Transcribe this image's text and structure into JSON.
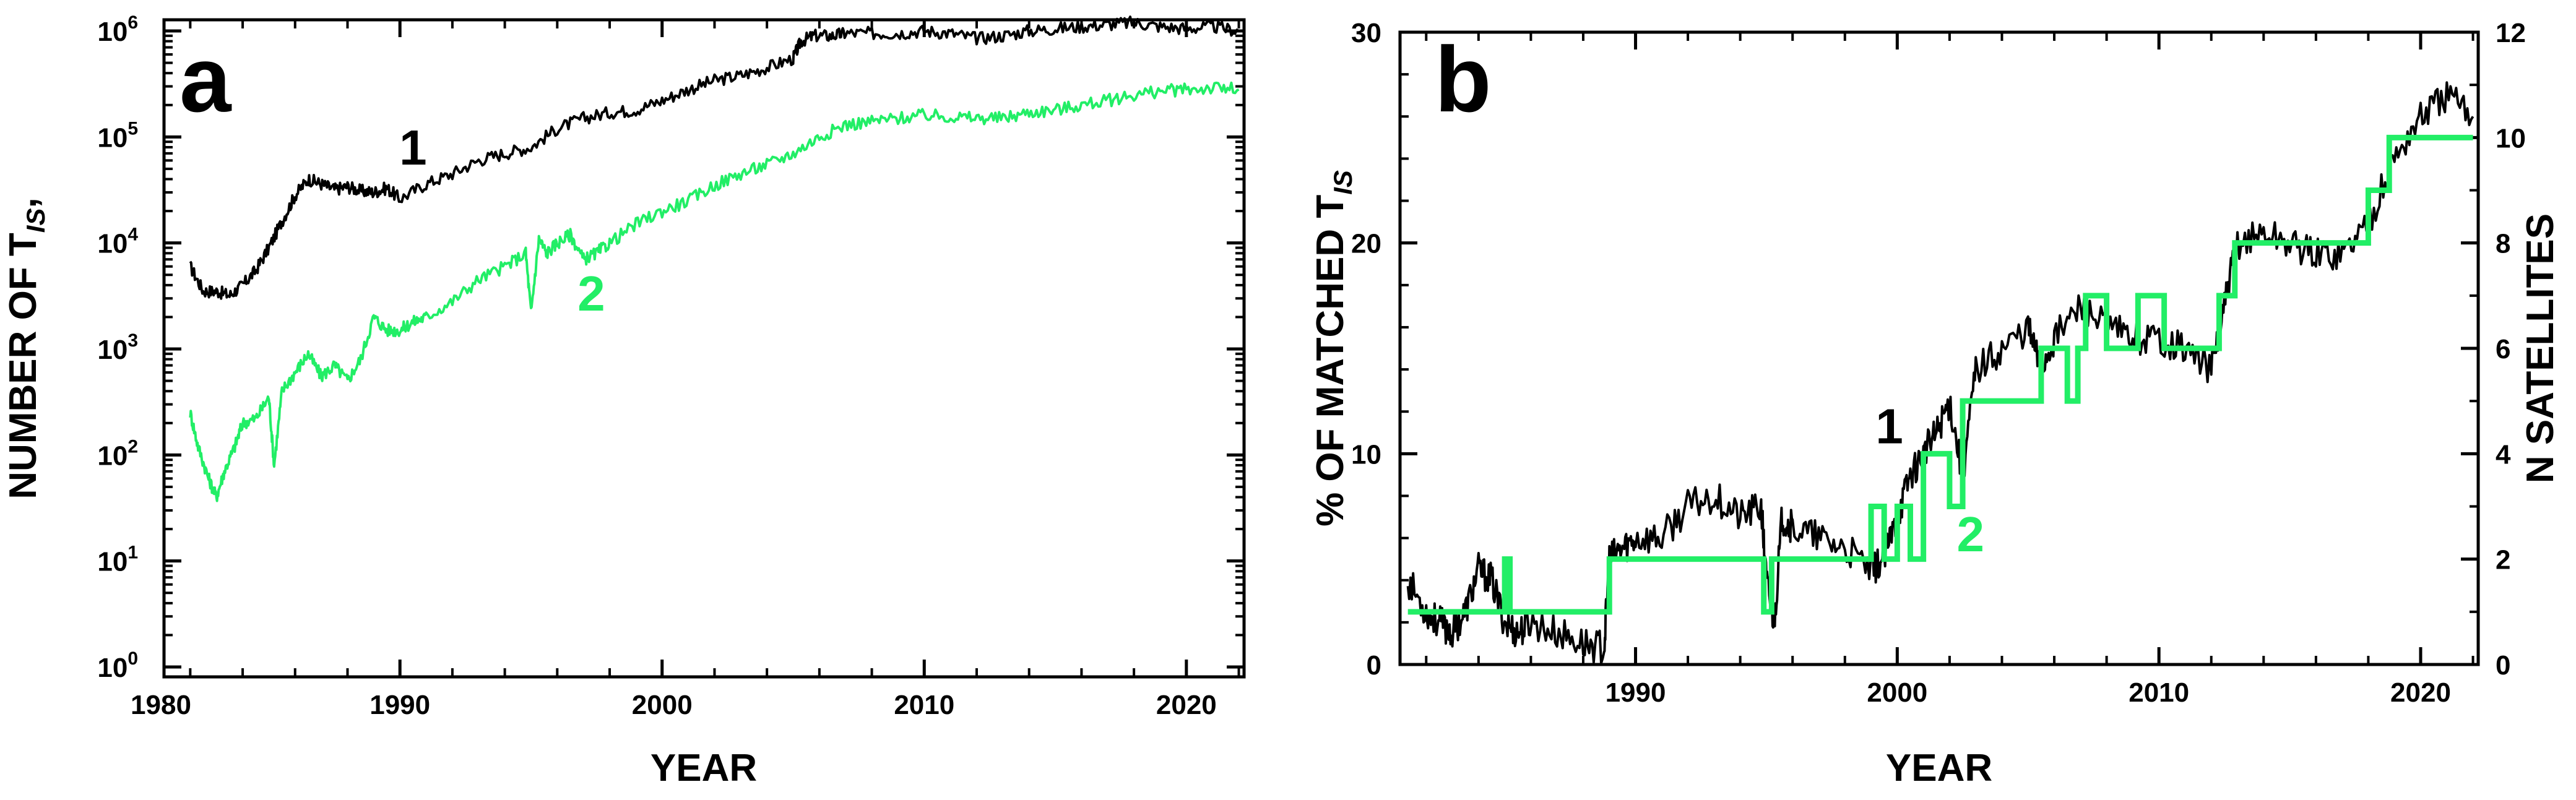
{
  "colors": {
    "series1": "#000000",
    "series2": "#22ee66",
    "axis": "#000000"
  },
  "chart_data": [
    {
      "type": "line",
      "panel_label": "a",
      "xlabel": "YEAR",
      "ylabel_main": "NUMBER OF T",
      "ylabel_sub": "IS",
      "ylabel_tail": ",",
      "yscale": "log",
      "xlim": [
        1981,
        2022.2
      ],
      "ylim": [
        1,
        1000000
      ],
      "x_ticks": [
        1980,
        1990,
        2000,
        2010,
        2020
      ],
      "x_tick_labels": [
        "1980",
        "1990",
        "2000",
        "2010",
        "2020"
      ],
      "y_ticks": [
        {
          "base": "10",
          "exp": "0"
        },
        {
          "base": "10",
          "exp": "1"
        },
        {
          "base": "10",
          "exp": "2"
        },
        {
          "base": "10",
          "exp": "3"
        },
        {
          "base": "10",
          "exp": "4"
        },
        {
          "base": "10",
          "exp": "5"
        },
        {
          "base": "10",
          "exp": "6"
        }
      ],
      "series": [
        {
          "name": "1",
          "label": "1",
          "label_at": {
            "x": 1990.5,
            "y": 55000
          },
          "x": [
            1982.0,
            1982.5,
            1983.0,
            1983.5,
            1984.0,
            1984.5,
            1985.0,
            1985.5,
            1986.0,
            1986.5,
            1987.0,
            1987.5,
            1988.0,
            1988.5,
            1989.0,
            1989.5,
            1990.0,
            1991.0,
            1992.0,
            1993.0,
            1994.0,
            1995.0,
            1996.0,
            1997.0,
            1998.0,
            1999.0,
            2000.0,
            2001.0,
            2002.0,
            2003.0,
            2004.0,
            2005.0,
            2005.3,
            2005.8,
            2006.5,
            2007.0,
            2008.0,
            2009.0,
            2010.0,
            2011.0,
            2012.0,
            2013.0,
            2014.0,
            2015.0,
            2016.0,
            2017.0,
            2018.0,
            2019.0,
            2020.0,
            2021.0,
            2022.0
          ],
          "values": [
            6000,
            3500,
            3500,
            3200,
            4000,
            5500,
            9000,
            16000,
            28000,
            40000,
            36000,
            32000,
            34000,
            31000,
            30000,
            33000,
            26000,
            36000,
            45000,
            60000,
            70000,
            80000,
            120000,
            150000,
            170000,
            180000,
            220000,
            280000,
            340000,
            380000,
            450000,
            550000,
            800000,
            900000,
            900000,
            950000,
            950000,
            950000,
            1000000,
            950000,
            850000,
            900000,
            1000000,
            1050000,
            1100000,
            1150000,
            1200000,
            1100000,
            1050000,
            1100000,
            1000000
          ]
        },
        {
          "name": "2",
          "label": "2",
          "label_at": {
            "x": 1997.3,
            "y": 2300
          },
          "x": [
            1982.0,
            1982.3,
            1982.7,
            1983.0,
            1983.3,
            1983.7,
            1984.0,
            1984.5,
            1985.0,
            1985.2,
            1985.5,
            1986.0,
            1986.5,
            1987.0,
            1987.5,
            1988.0,
            1988.5,
            1989.0,
            1989.5,
            1990.0,
            1990.5,
            1991.0,
            1992.0,
            1993.0,
            1994.0,
            1994.8,
            1995.0,
            1995.3,
            1995.6,
            1996.0,
            1996.5,
            1997.0,
            1997.5,
            1998.0,
            1999.0,
            2000.0,
            2001.0,
            2002.0,
            2003.0,
            2004.0,
            2005.0,
            2006.0,
            2007.0,
            2008.0,
            2009.0,
            2010.0,
            2011.0,
            2012.0,
            2013.0,
            2014.0,
            2015.0,
            2016.0,
            2017.0,
            2018.0,
            2019.0,
            2020.0,
            2021.0,
            2022.0
          ],
          "values": [
            250,
            120,
            60,
            40,
            70,
            120,
            200,
            220,
            350,
            80,
            400,
            600,
            900,
            550,
            700,
            500,
            800,
            2000,
            1500,
            1500,
            1800,
            2000,
            2800,
            4500,
            6000,
            8000,
            2200,
            11000,
            8000,
            10000,
            12000,
            7000,
            8000,
            10000,
            15000,
            20000,
            25000,
            35000,
            45000,
            55000,
            70000,
            100000,
            130000,
            140000,
            150000,
            160000,
            155000,
            150000,
            150000,
            170000,
            180000,
            200000,
            220000,
            250000,
            270000,
            280000,
            290000,
            280000
          ]
        }
      ]
    },
    {
      "type": "line",
      "panel_label": "b",
      "xlabel": "YEAR",
      "ylabel_main": "% OF MATCHED T",
      "ylabel_sub": "IS",
      "ylabel_right": "N SATELLITES",
      "xlim": [
        1981,
        2022.2
      ],
      "ylim_left": [
        0,
        30
      ],
      "ylim_right": [
        0,
        12
      ],
      "x_ticks": [
        1990,
        2000,
        2010,
        2020
      ],
      "x_tick_labels": [
        "1990",
        "2000",
        "2010",
        "2020"
      ],
      "y_ticks_left": [
        "0",
        "10",
        "20",
        "30"
      ],
      "y_ticks_right": [
        "0",
        "2",
        "4",
        "6",
        "8",
        "10",
        "12"
      ],
      "series": [
        {
          "name": "1",
          "label": "1",
          "axis": "left",
          "label_at": {
            "x": 1999.7,
            "y": 10.5
          },
          "x": [
            1981.3,
            1982.0,
            1982.5,
            1983.0,
            1983.5,
            1984.0,
            1984.5,
            1985.0,
            1985.5,
            1986.0,
            1987.0,
            1988.0,
            1988.8,
            1989.0,
            1989.5,
            1990.0,
            1991.0,
            1992.0,
            1993.0,
            1994.0,
            1994.8,
            1995.0,
            1995.3,
            1995.6,
            1996.0,
            1997.0,
            1998.0,
            1999.0,
            1999.5,
            2000.0,
            2000.5,
            2001.0,
            2001.5,
            2002.0,
            2002.5,
            2003.0,
            2004.0,
            2005.0,
            2005.5,
            2006.0,
            2007.0,
            2008.0,
            2009.0,
            2010.0,
            2011.0,
            2012.0,
            2012.5,
            2013.0,
            2014.0,
            2015.0,
            2016.0,
            2017.0,
            2018.0,
            2019.0,
            2020.0,
            2021.0,
            2022.0
          ],
          "values": [
            4.0,
            2.5,
            2.0,
            1.5,
            2.5,
            4.5,
            4.0,
            2.0,
            1.5,
            2.0,
            1.5,
            1.0,
            0.8,
            5.0,
            5.5,
            6.0,
            6.0,
            7.5,
            8.0,
            7.0,
            7.5,
            4.0,
            2.0,
            7.0,
            6.5,
            6.0,
            5.5,
            4.5,
            5.0,
            7.0,
            9.0,
            10.0,
            11.0,
            12.5,
            9.0,
            14.0,
            15.0,
            16.0,
            14.0,
            15.5,
            17.0,
            16.0,
            15.5,
            15.5,
            15.0,
            14.0,
            17.0,
            20.0,
            20.5,
            20.0,
            19.5,
            19.5,
            21.0,
            24.0,
            26.0,
            27.0,
            26.0
          ]
        },
        {
          "name": "2",
          "label": "2",
          "axis": "right",
          "step": true,
          "label_at": {
            "x": 2002.8,
            "y": 2.5
          },
          "x": [
            1981.3,
            1985.0,
            1985.2,
            1989.0,
            1992.0,
            1994.9,
            1995.2,
            1999.0,
            1999.5,
            2000.0,
            2000.5,
            2001.0,
            2002.0,
            2002.5,
            2005.5,
            2006.5,
            2006.9,
            2007.2,
            2008.0,
            2009.2,
            2010.2,
            2012.3,
            2012.9,
            2018.0,
            2018.8,
            2022.0
          ],
          "values": [
            1,
            2,
            1,
            2,
            2,
            1,
            2,
            3,
            2,
            3,
            2,
            4,
            3,
            5,
            6,
            5,
            6,
            7,
            6,
            7,
            6,
            7,
            8,
            9,
            10,
            10
          ]
        }
      ]
    }
  ]
}
